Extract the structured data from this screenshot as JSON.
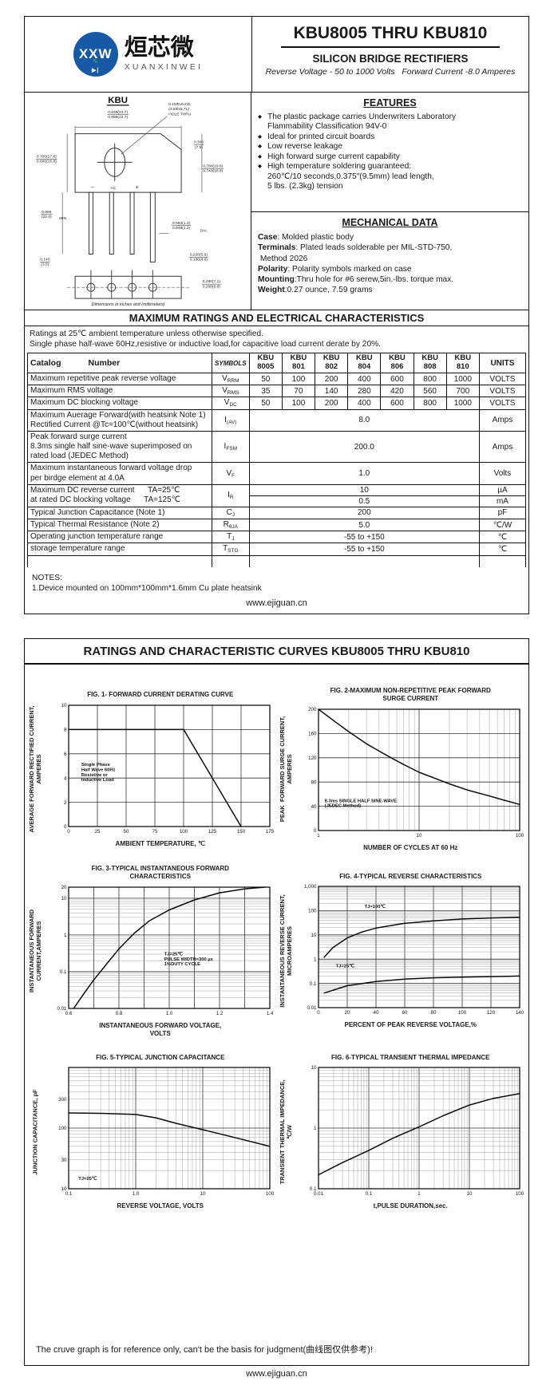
{
  "page1": {
    "logo": {
      "circle_text": "XXW",
      "zig": "∿",
      "diode": "▶|",
      "cn": "烜芯微",
      "en": "XUANXINWEI",
      "blue": "#1659a6",
      "green": "#3fae49"
    },
    "title": "KBU8005 THRU KBU810",
    "subtitle": "SILICON BRIDGE RECTIFIERS",
    "tagline": "Reverse Voltage - 50 to 1000 Volts   Forward Current -8.0 Amperes",
    "package": {
      "name": "KBU",
      "caption": "Dimensions in inches and (millimeters)",
      "markings": [
        {
          "t": "−",
          "x": 84
        },
        {
          "t": "AC",
          "x": 110
        },
        {
          "t": "+",
          "x": 140
        }
      ],
      "dims": {
        "top_width": [
          "0.935(23.7)",
          "0.895(22.7)"
        ],
        "hole": [
          "0.15Φx0.23L",
          "(3.8Φx5.7L)",
          "HOLE THRU"
        ],
        "corner": [
          "0.300",
          "(7.5)"
        ],
        "left_h": [
          "0.700(17.8)",
          "0.600(16.8)"
        ],
        "right_h": [
          "0.780(19.8)",
          "0.740(18.8)"
        ],
        "lead_len": [
          "0.866",
          "(22.0)"
        ],
        "lead_dia": [
          "0.053(1.3)",
          "0.048(1.2)"
        ],
        "bottom_off": [
          "0.140",
          "(3.5)"
        ],
        "pitch": [
          "0.220(5.6)",
          "0.180(4.6)"
        ],
        "depth": [
          "0.280(7.1)",
          "0.260(6.8)"
        ]
      },
      "dims_suffix": {
        "lead_len": "MIN.",
        "lead_dia": "DIA."
      }
    },
    "features": {
      "heading": "FEATURES",
      "bullet": "◆",
      "items": [
        "The plastic package carries Underwriters Laboratory\nFlammability Classification 94V-0",
        "Ideal for printed circuit boards",
        "Low reverse leakage",
        "High forward surge current capability",
        "High temperature soldering guaranteed:\n260℃/10 seconds,0.375″(9.5mm) lead length,\n5 lbs. (2.3kg) tension"
      ]
    },
    "mechanical": {
      "heading": "MECHANICAL DATA",
      "lines": [
        {
          "b": "Case",
          "t": ": Molded plastic body"
        },
        {
          "b": "Terminals",
          "t": ": Plated leads solderable per MIL-STD-750,"
        },
        {
          "b": "",
          "t": " Method 2026"
        },
        {
          "b": "Polarity",
          "t": ": Polarity symbols marked on case"
        },
        {
          "b": "Mounting",
          "t": ":Thru hole for #6 serew,5in.-lbs. torque max."
        },
        {
          "b": "Weight",
          "t": ":0.27 ounce, 7.59 grams"
        }
      ]
    },
    "ratings": {
      "heading": "MAXIMUM RATINGS AND ELECTRICAL CHARACTERISTICS",
      "notes": [
        "Ratings at 25℃ ambient temperature unless otherwise specified.",
        "Single phase half-wave 60Hz,resistive or inductive load,for capacitive load current derate by 20%."
      ],
      "header": {
        "catalog": [
          "Catalog",
          "Number"
        ],
        "symbols": "SYMBOLS",
        "parts": [
          [
            "KBU",
            "8005"
          ],
          [
            "KBU",
            "801"
          ],
          [
            "KBU",
            "802"
          ],
          [
            "KBU",
            "804"
          ],
          [
            "KBU",
            "806"
          ],
          [
            "KBU",
            "808"
          ],
          [
            "KBU",
            "810"
          ]
        ],
        "units": "UNITS"
      },
      "rows": [
        {
          "text": "Maximum repetitive peak reverse voltage",
          "sym": {
            "m": "V",
            "s": "RRM"
          },
          "values": [
            "50",
            "100",
            "200",
            "400",
            "600",
            "800",
            "1000"
          ],
          "unit": "VOLTS"
        },
        {
          "text": "Maximum RMS voltage",
          "sym": {
            "m": "V",
            "s": "RMS"
          },
          "values": [
            "35",
            "70",
            "140",
            "280",
            "420",
            "560",
            "700"
          ],
          "unit": "VOLTS"
        },
        {
          "text": "Maximum DC blocking voltage",
          "sym": {
            "m": "V",
            "s": "DC"
          },
          "values": [
            "50",
            "100",
            "200",
            "400",
            "600",
            "800",
            "1000"
          ],
          "unit": "VOLTS"
        },
        {
          "text": "Maximum Auerage Forward(with heatsink Note 1)\nRectified Current @Tc=100℃(without heatsink)",
          "sym": {
            "m": "I",
            "s": "(AV)"
          },
          "span": "8.0",
          "unit": "Amps"
        },
        {
          "text": "Peak forward surge current\n8.3ms single half sine-wave superimposed on\nrated load (JEDEC Method)",
          "sym": {
            "m": "I",
            "s": "FSM"
          },
          "span": "200.0",
          "unit": "Amps"
        },
        {
          "text": "Maximum instantaneous forward voltage drop\nper birdge element at 4.0A",
          "sym": {
            "m": "V",
            "s": "F"
          },
          "span": "1.0",
          "unit": "Volts"
        },
        {
          "text": "Maximum DC reverse current      TA=25℃\nat rated DC blocking voltage      TA=125℃",
          "sym": {
            "m": "I",
            "s": "R"
          },
          "split": [
            {
              "span": "10",
              "unit": "µA"
            },
            {
              "span": "0.5",
              "unit": "mA"
            }
          ]
        },
        {
          "text": "Typical Junction Capacitance (Note 1)",
          "sym": {
            "m": "C",
            "s": "J"
          },
          "span": "200",
          "unit": "pF"
        },
        {
          "text": "Typical Thermal Resistance (Note 2)",
          "sym": {
            "m": "R",
            "s": "θJA"
          },
          "span": "5.0",
          "unit": "℃/W"
        },
        {
          "text": "Operating junction temperature range",
          "sym": {
            "m": "T",
            "s": "J"
          },
          "span": "-55 to +150",
          "unit": "℃"
        },
        {
          "text": "storage temperature range",
          "sym": {
            "m": "T",
            "s": "STG"
          },
          "span": "-55 to +150",
          "unit": "℃"
        }
      ]
    },
    "notes": {
      "heading": "NOTES:",
      "items": [
        "1.Device mounted on 100mm*100mm*1.6mm Cu plate heatsink"
      ]
    },
    "footer": "www.ejiguan.cn"
  },
  "page2": {
    "heading": "RATINGS AND CHARACTERISTIC CURVES KBU8005 THRU KBU810",
    "disclaimer": "The cruve graph is for reference only, can't be the basis for judgment(曲线图仅供参考)!",
    "footer": "www.ejiguan.cn"
  },
  "chart_data": [
    {
      "id": "fig1",
      "type": "line",
      "title": "FIG. 1- FORWARD CURRENT DERATING CURVE",
      "xlabel": "AMBIENT TEMPERATURE, ℃",
      "ylabel": "AVERAGE FORWARD RECTIFIED CURRENT,\nAMPERES",
      "x_axis": {
        "scale": "linear",
        "min": 0,
        "max": 175,
        "ticks": [
          [
            0,
            "0"
          ],
          [
            25,
            "25"
          ],
          [
            50,
            "50"
          ],
          [
            75,
            "75"
          ],
          [
            100,
            "100"
          ],
          [
            125,
            "125"
          ],
          [
            150,
            "150"
          ],
          [
            175,
            "175"
          ]
        ]
      },
      "y_axis": {
        "scale": "linear",
        "min": 0,
        "max": 10,
        "ticks": [
          [
            0,
            "0"
          ],
          [
            2,
            "2"
          ],
          [
            4,
            "4"
          ],
          [
            6,
            "6"
          ],
          [
            8,
            "8"
          ],
          [
            10,
            "10"
          ]
        ]
      },
      "series": [
        {
          "name": "derating",
          "points": [
            [
              0,
              8
            ],
            [
              100,
              8
            ],
            [
              150,
              0
            ]
          ]
        }
      ],
      "annotations": [
        {
          "x": 11,
          "y": 5.0,
          "text": "Single Phase\nHalf Wave 60Hz\nResistive or\nInductive Load"
        }
      ]
    },
    {
      "id": "fig2",
      "type": "line",
      "title": "FIG. 2-MAXIMUM NON-REPETITIVE PEAK FORWARD\nSURGE CURRENT",
      "xlabel": "NUMBER OF CYCLES AT 60 Hz",
      "ylabel": "PEAK  FORWARD SURGE CURRENT,\nAMPERES",
      "x_axis": {
        "scale": "log",
        "min": 1,
        "max": 100,
        "ticks": [
          [
            1,
            "1"
          ],
          [
            10,
            "10"
          ],
          [
            100,
            "100"
          ]
        ]
      },
      "y_axis": {
        "scale": "linear",
        "min": 0,
        "max": 200,
        "ticks": [
          [
            0,
            "0"
          ],
          [
            40,
            "40"
          ],
          [
            80,
            "80"
          ],
          [
            120,
            "120"
          ],
          [
            160,
            "160"
          ],
          [
            200,
            "200"
          ]
        ]
      },
      "series": [
        {
          "name": "surge",
          "points": [
            [
              1,
              200
            ],
            [
              1.5,
              178
            ],
            [
              2,
              163
            ],
            [
              3,
              143
            ],
            [
              4,
              131
            ],
            [
              5,
              122
            ],
            [
              7,
              109
            ],
            [
              10,
              96
            ],
            [
              15,
              85
            ],
            [
              20,
              77
            ],
            [
              30,
              67
            ],
            [
              50,
              57
            ],
            [
              70,
              50
            ],
            [
              100,
              43
            ]
          ]
        }
      ],
      "annotations": [
        {
          "x": 1.15,
          "y": 47,
          "text": "8.3ms SINGLE HALF SINE-WAVE\n(JEDEC Method)"
        }
      ]
    },
    {
      "id": "fig3",
      "type": "line",
      "title": "FIG. 3-TYPICAL INSTANTANEOUS FORWARD\nCHARACTERISTICS",
      "xlabel": "INSTANTANEOUS FORWARD VOLTAGE,\nVOLTS",
      "ylabel": "INSTANTANEOUS FORWARD\nCURRENT,AMPERES",
      "x_axis": {
        "scale": "linear",
        "min": 0.6,
        "max": 1.4,
        "minor_step": 0.1,
        "ticks": [
          [
            0.6,
            "0.6"
          ],
          [
            0.8,
            "0.8"
          ],
          [
            1.0,
            "1.0"
          ],
          [
            1.2,
            "1.2"
          ],
          [
            1.4,
            "1.4"
          ]
        ]
      },
      "y_axis": {
        "scale": "log",
        "min": 0.01,
        "max": 20,
        "ticks": [
          [
            20,
            "20"
          ],
          [
            10,
            "10"
          ],
          [
            1,
            "1"
          ],
          [
            0.1,
            "0.1"
          ],
          [
            0.01,
            "0.01"
          ]
        ]
      },
      "series": [
        {
          "name": "vf",
          "points": [
            [
              0.62,
              0.01
            ],
            [
              0.66,
              0.025
            ],
            [
              0.7,
              0.06
            ],
            [
              0.75,
              0.16
            ],
            [
              0.8,
              0.42
            ],
            [
              0.86,
              1.1
            ],
            [
              0.92,
              2.4
            ],
            [
              1.0,
              4.8
            ],
            [
              1.1,
              9
            ],
            [
              1.2,
              14
            ],
            [
              1.3,
              18
            ],
            [
              1.38,
              20
            ]
          ]
        }
      ],
      "annotations": [
        {
          "x": 0.98,
          "y": 0.28,
          "text": "TJ=25℃\nPULSE WIDTH=300 µs\n1%DUTY CYCLE"
        }
      ]
    },
    {
      "id": "fig4",
      "type": "line",
      "title": "FIG. 4-TYPICAL REVERSE CHARACTERISTICS",
      "xlabel": "PERCENT OF PEAK REVERSE VOLTAGE,%",
      "ylabel": "INSTANTANEOUS REVERSE CURRENT,\nMICROAMPERES",
      "x_axis": {
        "scale": "linear",
        "min": 0,
        "max": 140,
        "ticks": [
          [
            0,
            "0"
          ],
          [
            20,
            "20"
          ],
          [
            40,
            "40"
          ],
          [
            60,
            "60"
          ],
          [
            80,
            "80"
          ],
          [
            100,
            "100"
          ],
          [
            120,
            "120"
          ],
          [
            140,
            "140"
          ]
        ]
      },
      "y_axis": {
        "scale": "log",
        "min": 0.01,
        "max": 1000,
        "ticks": [
          [
            1000,
            "1,000"
          ],
          [
            100,
            "100"
          ],
          [
            10,
            "10"
          ],
          [
            1,
            "1"
          ],
          [
            0.1,
            "0.1"
          ],
          [
            0.01,
            "0.01"
          ]
        ]
      },
      "series": [
        {
          "name": "TJ=100℃",
          "points": [
            [
              4,
              1.2
            ],
            [
              10,
              3
            ],
            [
              20,
              7.5
            ],
            [
              30,
              13
            ],
            [
              40,
              19
            ],
            [
              60,
              30
            ],
            [
              80,
              38
            ],
            [
              100,
              45
            ],
            [
              120,
              50
            ],
            [
              140,
              53
            ]
          ]
        },
        {
          "name": "TJ=25℃",
          "points": [
            [
              4,
              0.04
            ],
            [
              20,
              0.08
            ],
            [
              40,
              0.12
            ],
            [
              60,
              0.15
            ],
            [
              80,
              0.17
            ],
            [
              100,
              0.18
            ],
            [
              120,
              0.19
            ],
            [
              140,
              0.2
            ]
          ]
        }
      ],
      "annotations": [
        {
          "x": 32,
          "y": 130,
          "text": "TJ=100℃"
        },
        {
          "x": 12,
          "y": 0.45,
          "text": "TJ=25℃"
        }
      ]
    },
    {
      "id": "fig5",
      "type": "line",
      "title": "FIG. 5-TYPICAL JUNCTION CAPACITANCE",
      "xlabel": "REVERSE VOLTAGE, VOLTS",
      "ylabel": "JUNCTION CAPACITANCE, pF",
      "x_axis": {
        "scale": "log",
        "min": 0.1,
        "max": 100,
        "ticks": [
          [
            0.1,
            "0.1"
          ],
          [
            1,
            "1.0"
          ],
          [
            10,
            "10"
          ],
          [
            100,
            "100"
          ]
        ]
      },
      "y_axis": {
        "scale": "log",
        "min": 10,
        "max": 1000,
        "ticks": [
          [
            300,
            "300"
          ],
          [
            100,
            "100"
          ],
          [
            30,
            "30"
          ],
          [
            10,
            "10"
          ]
        ]
      },
      "series": [
        {
          "name": "cj",
          "points": [
            [
              0.1,
              178
            ],
            [
              0.3,
              175
            ],
            [
              1,
              168
            ],
            [
              2,
              148
            ],
            [
              4,
              120
            ],
            [
              10,
              94
            ],
            [
              30,
              70
            ],
            [
              100,
              50
            ]
          ]
        }
      ],
      "annotations": [
        {
          "x": 0.14,
          "y": 14,
          "text": "TJ=25℃"
        }
      ]
    },
    {
      "id": "fig6",
      "type": "line",
      "title": "FIG. 6-TYPICAL TRANSIENT THERMAL IMPEDANCE",
      "xlabel": "t,PULSE DURATION,sec.",
      "ylabel": "TRANSIENT THERMAL IMPEDANCE,\n℃/W",
      "x_axis": {
        "scale": "log",
        "min": 0.01,
        "max": 100,
        "ticks": [
          [
            0.01,
            "0.01"
          ],
          [
            0.1,
            "0.1"
          ],
          [
            1,
            "1"
          ],
          [
            10,
            "10"
          ],
          [
            100,
            "100"
          ]
        ]
      },
      "y_axis": {
        "scale": "log",
        "min": 0.1,
        "max": 10,
        "ticks": [
          [
            10,
            "10"
          ],
          [
            1,
            "1"
          ],
          [
            0.1,
            "0.1"
          ]
        ]
      },
      "series": [
        {
          "name": "zth",
          "points": [
            [
              0.01,
              0.17
            ],
            [
              0.03,
              0.27
            ],
            [
              0.1,
              0.43
            ],
            [
              0.3,
              0.68
            ],
            [
              1,
              1.05
            ],
            [
              3,
              1.6
            ],
            [
              10,
              2.4
            ],
            [
              30,
              3.1
            ],
            [
              100,
              3.7
            ]
          ]
        }
      ],
      "annotations": []
    }
  ]
}
